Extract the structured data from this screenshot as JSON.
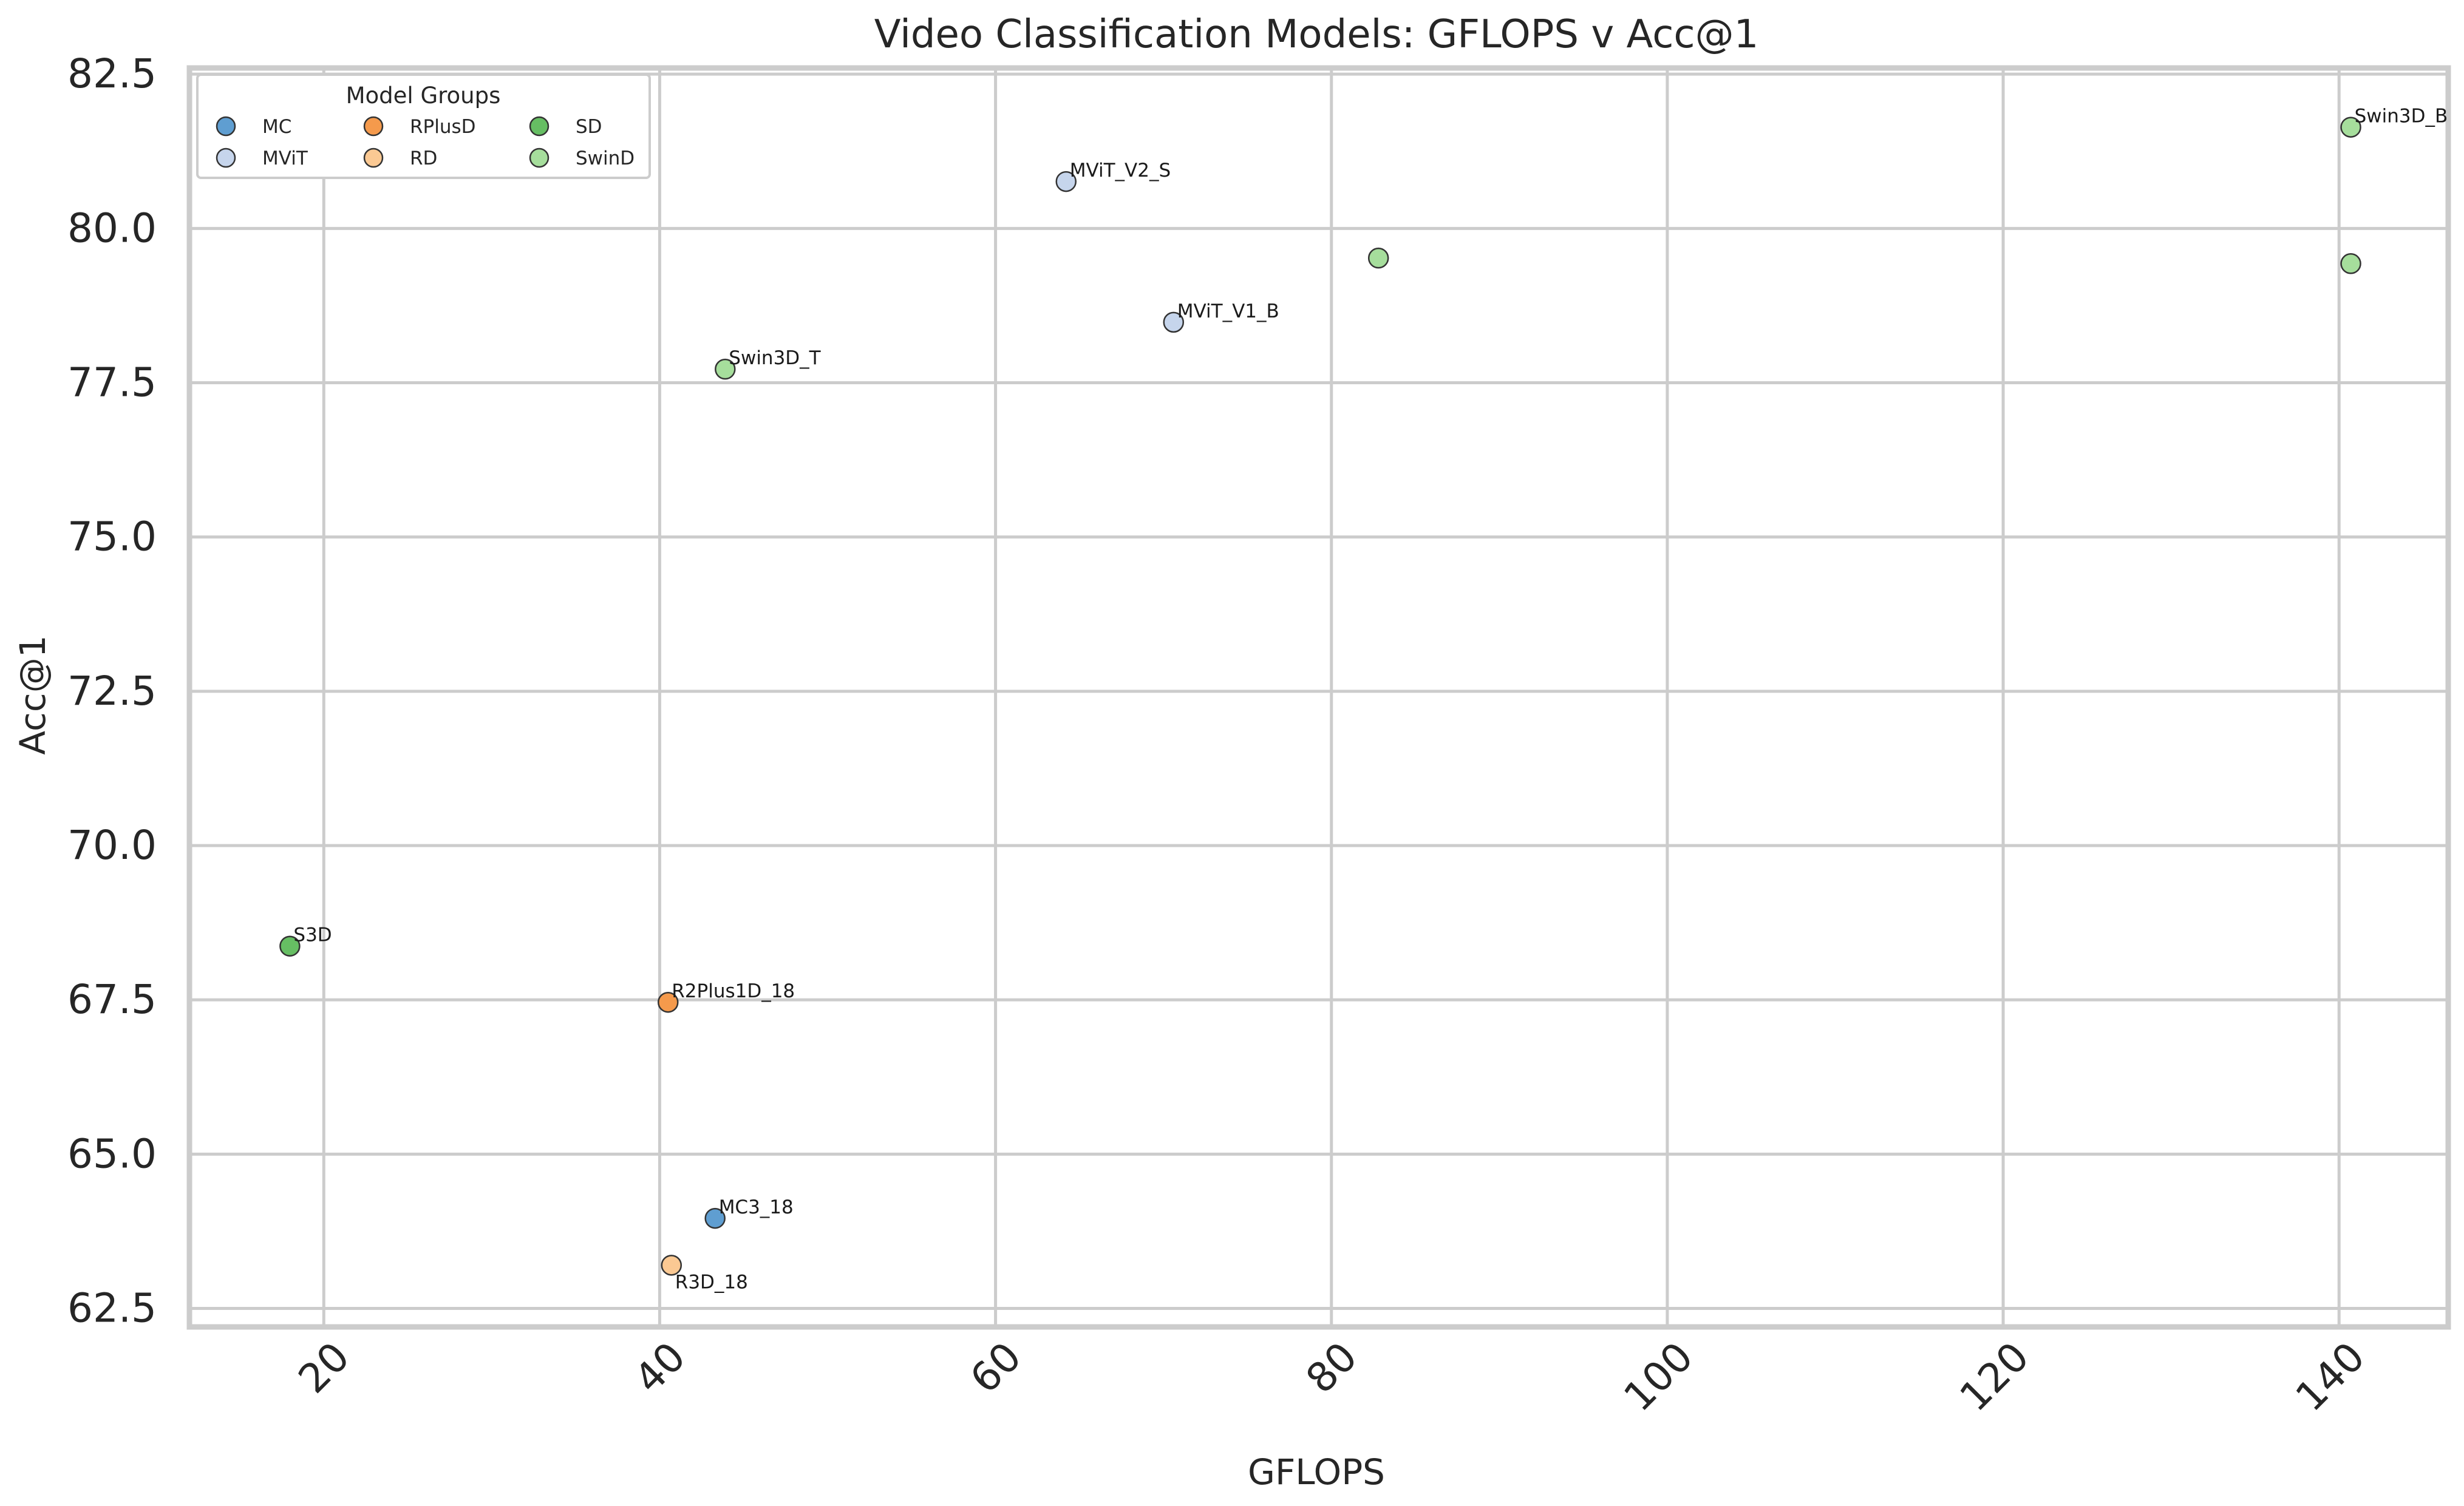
{
  "chart_data": {
    "type": "scatter",
    "title": "Video Classification Models: GFLOPS v Acc@1",
    "xlabel": "GFLOPS",
    "ylabel": "Acc@1",
    "xlim": [
      12,
      146.5
    ],
    "ylim": [
      62.2,
      82.6
    ],
    "xticks": [
      20,
      40,
      60,
      80,
      100,
      120,
      140
    ],
    "yticks": [
      62.5,
      65.0,
      67.5,
      70.0,
      72.5,
      75.0,
      77.5,
      80.0,
      82.5
    ],
    "grid": true,
    "legend": {
      "title": "Model Groups",
      "placement": "top-left",
      "columns": 3
    },
    "groups": [
      {
        "name": "MC",
        "color": "#5f9ed1"
      },
      {
        "name": "MViT",
        "color": "#c6d5ec"
      },
      {
        "name": "RPlusD",
        "color": "#f59a4c"
      },
      {
        "name": "RD",
        "color": "#fbc993"
      },
      {
        "name": "SD",
        "color": "#66be63"
      },
      {
        "name": "SwinD",
        "color": "#a6de9c"
      }
    ],
    "points": [
      {
        "label": "MC3_18",
        "group": "MC",
        "x": 43.3,
        "y": 63.96,
        "label_pos": "above"
      },
      {
        "label": "R3D_18",
        "group": "RD",
        "x": 40.7,
        "y": 63.2,
        "label_pos": "below"
      },
      {
        "label": "R2Plus1D_18",
        "group": "RPlusD",
        "x": 40.5,
        "y": 67.46,
        "label_pos": "above"
      },
      {
        "label": "S3D",
        "group": "SD",
        "x": 17.98,
        "y": 68.37,
        "label_pos": "above"
      },
      {
        "label": "Swin3D_T",
        "group": "SwinD",
        "x": 43.9,
        "y": 77.72,
        "label_pos": "above"
      },
      {
        "label": "MViT_V1_B",
        "group": "MViT",
        "x": 70.6,
        "y": 78.48,
        "label_pos": "above"
      },
      {
        "label": "MViT_V2_S",
        "group": "MViT",
        "x": 64.2,
        "y": 80.76,
        "label_pos": "above"
      },
      {
        "label": "",
        "group": "SwinD",
        "x": 82.8,
        "y": 79.52,
        "label_pos": "none"
      },
      {
        "label": "",
        "group": "SwinD",
        "x": 140.7,
        "y": 79.43,
        "label_pos": "none"
      },
      {
        "label": "Swin3D_B",
        "group": "SwinD",
        "x": 140.7,
        "y": 81.64,
        "label_pos": "above"
      }
    ]
  }
}
